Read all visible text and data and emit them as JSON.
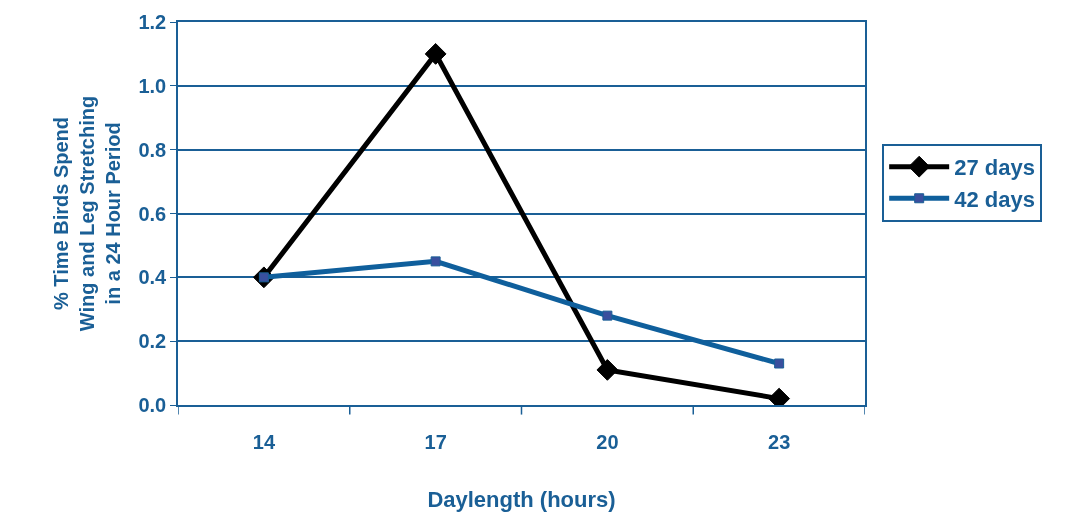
{
  "chart_data": {
    "type": "line",
    "xlabel": "Daylength (hours)",
    "ylabel": "% Time Birds Spend\nWing and Leg Stretching\nin a 24 Hour Period",
    "categories": [
      "14",
      "17",
      "20",
      "23"
    ],
    "series": [
      {
        "name": "27 days",
        "color": "#000000",
        "marker": "diamond",
        "values": [
          0.4,
          1.1,
          0.11,
          0.02
        ]
      },
      {
        "name": "42 days",
        "color": "#0f5f9c",
        "marker": "square",
        "values": [
          0.4,
          0.45,
          0.28,
          0.13
        ]
      }
    ],
    "ylim": [
      0,
      1.2
    ],
    "yticks": [
      {
        "value": 0,
        "label": "0.0"
      },
      {
        "value": 0.2,
        "label": "0.2"
      },
      {
        "value": 0.4,
        "label": "0.4"
      },
      {
        "value": 0.6,
        "label": "0.6"
      },
      {
        "value": 0.8,
        "label": "0.8"
      },
      {
        "value": 1,
        "label": "1.0"
      },
      {
        "value": 1.2,
        "label": "1.2"
      }
    ],
    "grid": "y",
    "legend": "right",
    "line_style": "solid"
  }
}
